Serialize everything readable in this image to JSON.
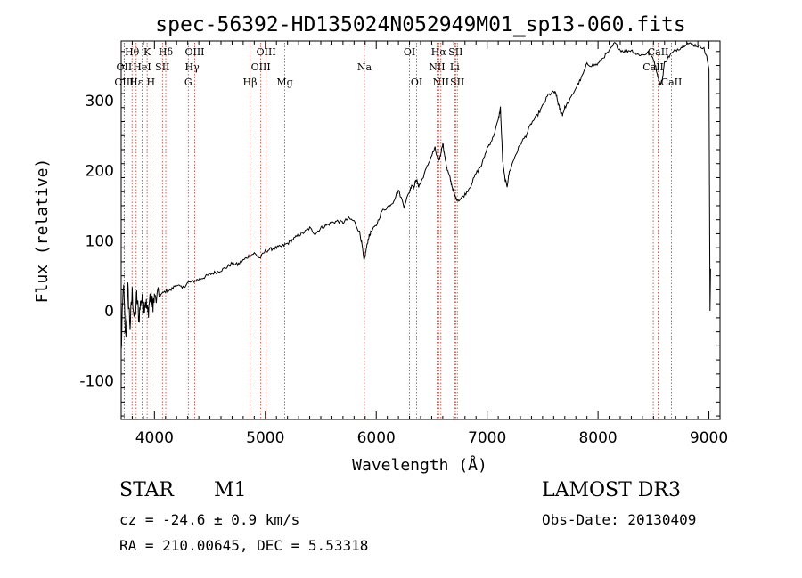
{
  "chart_data": {
    "type": "line",
    "title": "spec-56392-HD135024N052949M01_sp13-060.fits",
    "xlabel": "Wavelength (Å)",
    "ylabel": "Flux (relative)",
    "xlim": [
      3700,
      9100
    ],
    "ylim": [
      -155,
      385
    ],
    "xticks": [
      4000,
      5000,
      6000,
      7000,
      8000,
      9000
    ],
    "yticks": [
      -100,
      0,
      100,
      200,
      300
    ],
    "grid": false,
    "series": [
      {
        "name": "Flux",
        "x": [
          3700,
          3720,
          3740,
          3760,
          3780,
          3800,
          3820,
          3840,
          3860,
          3880,
          3900,
          3920,
          3940,
          3960,
          3980,
          4000,
          4050,
          4100,
          4150,
          4200,
          4250,
          4300,
          4350,
          4400,
          4450,
          4500,
          4550,
          4600,
          4650,
          4700,
          4750,
          4800,
          4850,
          4900,
          4950,
          5000,
          5050,
          5100,
          5150,
          5200,
          5250,
          5300,
          5350,
          5400,
          5450,
          5500,
          5550,
          5600,
          5650,
          5700,
          5750,
          5800,
          5850,
          5870,
          5890,
          5910,
          5930,
          5950,
          6000,
          6050,
          6100,
          6150,
          6200,
          6250,
          6300,
          6320,
          6340,
          6360,
          6380,
          6400,
          6450,
          6500,
          6530,
          6560,
          6580,
          6600,
          6620,
          6640,
          6660,
          6680,
          6700,
          6720,
          6750,
          6800,
          6850,
          6900,
          6950,
          7000,
          7050,
          7100,
          7120,
          7140,
          7160,
          7180,
          7200,
          7250,
          7300,
          7350,
          7400,
          7450,
          7500,
          7550,
          7600,
          7620,
          7640,
          7660,
          7680,
          7700,
          7750,
          7800,
          7850,
          7900,
          7950,
          8000,
          8050,
          8100,
          8150,
          8200,
          8250,
          8300,
          8350,
          8400,
          8450,
          8500,
          8540,
          8560,
          8580,
          8600,
          8650,
          8700,
          8750,
          8800,
          8850,
          8900,
          8950,
          8980,
          9000,
          9010,
          9015
        ],
        "values": [
          -60,
          40,
          -40,
          30,
          -20,
          25,
          -15,
          20,
          -10,
          18,
          5,
          15,
          -5,
          20,
          10,
          15,
          22,
          28,
          30,
          38,
          32,
          40,
          42,
          45,
          48,
          52,
          55,
          58,
          62,
          68,
          66,
          72,
          78,
          82,
          75,
          85,
          88,
          90,
          92,
          96,
          102,
          108,
          112,
          118,
          110,
          118,
          122,
          126,
          128,
          126,
          132,
          128,
          112,
          96,
          70,
          88,
          104,
          112,
          122,
          142,
          148,
          155,
          172,
          150,
          170,
          180,
          176,
          188,
          178,
          182,
          202,
          222,
          232,
          212,
          222,
          240,
          218,
          202,
          192,
          180,
          168,
          160,
          158,
          166,
          178,
          196,
          208,
          232,
          246,
          272,
          290,
          214,
          188,
          178,
          198,
          220,
          238,
          250,
          268,
          278,
          292,
          308,
          312,
          310,
          296,
          285,
          280,
          290,
          302,
          318,
          332,
          352,
          350,
          352,
          362,
          370,
          382,
          372,
          370,
          372,
          366,
          365,
          368,
          360,
          335,
          322,
          330,
          355,
          365,
          372,
          376,
          382,
          380,
          378,
          376,
          362,
          345,
          0,
          60
        ]
      }
    ],
    "spectral_lines": [
      {
        "label": "Hθ",
        "row": 1,
        "wl": 3798
      },
      {
        "label": "K",
        "row": 1,
        "wl": 3934
      },
      {
        "label": "Hδ",
        "row": 1,
        "wl": 4102
      },
      {
        "label": "OIII",
        "row": 1,
        "wl": 4363
      },
      {
        "label": "OIII",
        "row": 1,
        "wl": 5007
      },
      {
        "label": "OI",
        "row": 1,
        "wl": 6300
      },
      {
        "label": "Hα",
        "row": 1,
        "wl": 6563
      },
      {
        "label": "SII",
        "row": 1,
        "wl": 6716
      },
      {
        "label": "CaII",
        "row": 1,
        "wl": 8542
      },
      {
        "label": "OII",
        "row": 2,
        "wl": 3727
      },
      {
        "label": "HeI",
        "row": 2,
        "wl": 3889
      },
      {
        "label": "SII",
        "row": 2,
        "wl": 4072
      },
      {
        "label": "Hγ",
        "row": 2,
        "wl": 4340
      },
      {
        "label": "OIII",
        "row": 2,
        "wl": 4959
      },
      {
        "label": "NII",
        "row": 2,
        "wl": 6548
      },
      {
        "label": "Li",
        "row": 2,
        "wl": 6708
      },
      {
        "label": "CaII",
        "row": 2,
        "wl": 8498
      },
      {
        "label": "OIII",
        "row": 3,
        "wl": 3727
      },
      {
        "label": "Hε",
        "row": 3,
        "wl": 3835
      },
      {
        "label": "H",
        "row": 3,
        "wl": 3968
      },
      {
        "label": "G",
        "row": 3,
        "wl": 4305
      },
      {
        "label": "Hβ",
        "row": 3,
        "wl": 4861
      },
      {
        "label": "Mg",
        "row": 3,
        "wl": 5175
      },
      {
        "label": "Na",
        "row": 2,
        "wl": 5893
      },
      {
        "label": "OI",
        "row": 3,
        "wl": 6364
      },
      {
        "label": "NII",
        "row": 3,
        "wl": 6583
      },
      {
        "label": "SII",
        "row": 3,
        "wl": 6731
      },
      {
        "label": "CaII",
        "row": 3,
        "wl": 8662
      }
    ],
    "line_color": "#000000",
    "marker_color": "#c0392b"
  },
  "info": {
    "object_type": "STAR",
    "subclass": "M1",
    "survey": "LAMOST DR3",
    "redshift_text": "cz = -24.6 ± 0.9 km/s",
    "obs_date_text": "Obs-Date: 20130409",
    "coords_text": "RA = 210.00645, DEC =   5.53318"
  }
}
